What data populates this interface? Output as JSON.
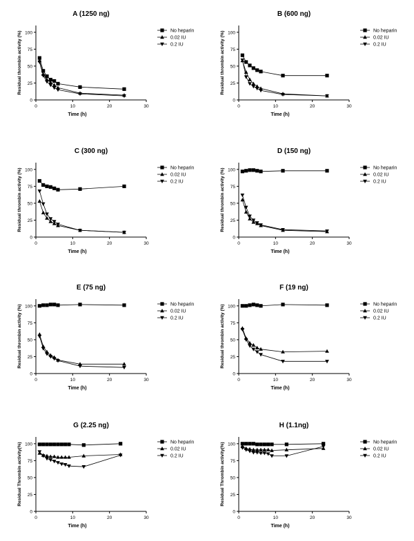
{
  "chart_data": [
    {
      "type": "line",
      "title": "A (1250 ng)",
      "xlabel": "Time (h)",
      "ylabel": "Residual thrombin activity (%)",
      "xlim": [
        0,
        30
      ],
      "ylim": [
        0,
        110
      ],
      "xticks": [
        0,
        10,
        20,
        30
      ],
      "yticks": [
        0,
        25,
        50,
        75,
        100
      ],
      "grid": false,
      "legend_position": "right",
      "series": [
        {
          "name": "No heparin",
          "marker": "square",
          "x": [
            1,
            2,
            3,
            4,
            5,
            6,
            12,
            24
          ],
          "y": [
            62,
            43,
            35,
            30,
            28,
            24,
            19,
            16
          ]
        },
        {
          "name": "0.02 IU",
          "marker": "triangle-up",
          "x": [
            1,
            2,
            3,
            4,
            5,
            6,
            12,
            24
          ],
          "y": [
            58,
            38,
            30,
            26,
            22,
            18,
            10,
            7
          ]
        },
        {
          "name": "0.2 IU",
          "marker": "triangle-down",
          "x": [
            1,
            2,
            3,
            4,
            5,
            6,
            12,
            24
          ],
          "y": [
            56,
            36,
            27,
            22,
            18,
            15,
            9,
            6
          ]
        }
      ]
    },
    {
      "type": "line",
      "title": "B (600 ng)",
      "xlabel": "Time (h)",
      "ylabel": "Residual thrombin activity (%)",
      "xlim": [
        0,
        30
      ],
      "ylim": [
        0,
        110
      ],
      "xticks": [
        0,
        10,
        20,
        30
      ],
      "yticks": [
        0,
        25,
        50,
        75,
        100
      ],
      "grid": false,
      "legend_position": "right",
      "series": [
        {
          "name": "No heparin",
          "marker": "square",
          "x": [
            1,
            2,
            3,
            4,
            5,
            6,
            12,
            24
          ],
          "y": [
            66,
            56,
            51,
            47,
            44,
            42,
            36,
            36
          ]
        },
        {
          "name": "0.02 IU",
          "marker": "triangle-up",
          "x": [
            1,
            2,
            3,
            4,
            5,
            6,
            12,
            24
          ],
          "y": [
            58,
            41,
            30,
            24,
            20,
            17,
            9,
            6
          ]
        },
        {
          "name": "0.2 IU",
          "marker": "triangle-down",
          "x": [
            1,
            2,
            3,
            4,
            5,
            6,
            12,
            24
          ],
          "y": [
            59,
            34,
            24,
            20,
            17,
            14,
            8,
            6
          ]
        }
      ]
    },
    {
      "type": "line",
      "title": "C (300 ng)",
      "xlabel": "Time (h)",
      "ylabel": "Residual thrombin activity (%)",
      "xlim": [
        0,
        30
      ],
      "ylim": [
        0,
        110
      ],
      "xticks": [
        0,
        10,
        20,
        30
      ],
      "yticks": [
        0,
        25,
        50,
        75,
        100
      ],
      "grid": false,
      "legend_position": "right",
      "series": [
        {
          "name": "No heparin",
          "marker": "square",
          "x": [
            1,
            2,
            3,
            4,
            5,
            6,
            12,
            24
          ],
          "y": [
            83,
            77,
            75,
            74,
            72,
            70,
            71,
            75
          ]
        },
        {
          "name": "0.02 IU",
          "marker": "triangle-up",
          "x": [
            1,
            2,
            3,
            4,
            5,
            6,
            12,
            24
          ],
          "y": [
            53,
            36,
            28,
            23,
            20,
            17,
            10,
            7
          ]
        },
        {
          "name": "0.2 IU",
          "marker": "triangle-down",
          "x": [
            1,
            2,
            3,
            4,
            5,
            6,
            12,
            24
          ],
          "y": [
            68,
            49,
            34,
            27,
            23,
            19,
            10,
            7
          ]
        }
      ]
    },
    {
      "type": "line",
      "title": "D (150 ng)",
      "xlabel": "Time (h)",
      "ylabel": "Residual thrombin activity (%)",
      "xlim": [
        0,
        30
      ],
      "ylim": [
        0,
        110
      ],
      "xticks": [
        0,
        10,
        20,
        30
      ],
      "yticks": [
        0,
        25,
        50,
        75,
        100
      ],
      "grid": false,
      "legend_position": "right",
      "series": [
        {
          "name": "No heparin",
          "marker": "square",
          "x": [
            1,
            2,
            3,
            4,
            5,
            6,
            12,
            24
          ],
          "y": [
            97,
            98,
            99,
            99,
            98,
            97,
            98,
            98
          ]
        },
        {
          "name": "0.02 IU",
          "marker": "triangle-up",
          "x": [
            1,
            2,
            3,
            4,
            5,
            6,
            12,
            24
          ],
          "y": [
            55,
            37,
            27,
            22,
            20,
            17,
            10,
            8
          ]
        },
        {
          "name": "0.2 IU",
          "marker": "triangle-down",
          "x": [
            1,
            2,
            3,
            4,
            5,
            6,
            12,
            24
          ],
          "y": [
            62,
            44,
            31,
            25,
            21,
            18,
            11,
            9
          ]
        }
      ]
    },
    {
      "type": "line",
      "title": "E (75 ng)",
      "xlabel": "Time (h)",
      "ylabel": "Residual thrombin activity (%)",
      "xlim": [
        0,
        30
      ],
      "ylim": [
        0,
        110
      ],
      "xticks": [
        0,
        10,
        20,
        30
      ],
      "yticks": [
        0,
        25,
        50,
        75,
        100
      ],
      "grid": false,
      "legend_position": "right",
      "series": [
        {
          "name": "No heparin",
          "marker": "square",
          "x": [
            1,
            2,
            3,
            4,
            5,
            6,
            12,
            24
          ],
          "y": [
            100,
            101,
            101,
            102,
            102,
            101,
            102,
            101
          ]
        },
        {
          "name": "0.02 IU",
          "marker": "triangle-up",
          "x": [
            1,
            2,
            3,
            4,
            5,
            6,
            12,
            24
          ],
          "y": [
            58,
            40,
            32,
            27,
            24,
            20,
            14,
            14
          ]
        },
        {
          "name": "0.2 IU",
          "marker": "triangle-down",
          "x": [
            1,
            2,
            3,
            4,
            5,
            6,
            12,
            24
          ],
          "y": [
            55,
            37,
            29,
            25,
            22,
            19,
            11,
            9
          ]
        }
      ]
    },
    {
      "type": "line",
      "title": "F (19 ng)",
      "xlabel": "Time (h)",
      "ylabel": "Residual thrombin activity (%)",
      "xlim": [
        0,
        30
      ],
      "ylim": [
        0,
        110
      ],
      "xticks": [
        0,
        10,
        20,
        30
      ],
      "yticks": [
        0,
        25,
        50,
        75,
        100
      ],
      "grid": false,
      "legend_position": "right",
      "series": [
        {
          "name": "No heparin",
          "marker": "square",
          "x": [
            1,
            2,
            3,
            4,
            5,
            6,
            12,
            24
          ],
          "y": [
            100,
            100,
            101,
            102,
            101,
            100,
            102,
            101
          ]
        },
        {
          "name": "0.02 IU",
          "marker": "triangle-up",
          "x": [
            1,
            2,
            3,
            4,
            5,
            6,
            12,
            24
          ],
          "y": [
            67,
            52,
            45,
            42,
            38,
            36,
            32,
            33
          ]
        },
        {
          "name": "0.2 IU",
          "marker": "triangle-down",
          "x": [
            1,
            2,
            3,
            4,
            5,
            6,
            12,
            24
          ],
          "y": [
            65,
            50,
            41,
            36,
            32,
            28,
            18,
            18
          ]
        }
      ]
    },
    {
      "type": "line",
      "title": "G (2.25 ng)",
      "xlabel": "Time (h)",
      "ylabel": "Residual Thrombin activity(%)",
      "xlim": [
        0,
        30
      ],
      "ylim": [
        0,
        110
      ],
      "xticks": [
        0,
        10,
        20,
        30
      ],
      "yticks": [
        0,
        25,
        50,
        75,
        100
      ],
      "grid": false,
      "legend_position": "right",
      "series": [
        {
          "name": "No heparin",
          "marker": "square",
          "x": [
            1,
            2,
            3,
            4,
            5,
            6,
            7,
            8,
            9,
            13,
            23
          ],
          "y": [
            99,
            99,
            99,
            99,
            99,
            99,
            99,
            99,
            99,
            98,
            100
          ]
        },
        {
          "name": "0.02 IU",
          "marker": "triangle-up",
          "x": [
            1,
            2,
            3,
            4,
            5,
            6,
            7,
            8,
            9,
            13,
            23
          ],
          "y": [
            86,
            83,
            82,
            81,
            81,
            80,
            80,
            80,
            80,
            82,
            84
          ]
        },
        {
          "name": "0.2 IU",
          "marker": "triangle-down",
          "x": [
            1,
            2,
            3,
            4,
            5,
            6,
            7,
            8,
            9,
            13,
            23
          ],
          "y": [
            88,
            82,
            78,
            76,
            74,
            72,
            70,
            69,
            67,
            66,
            83
          ]
        }
      ]
    },
    {
      "type": "line",
      "title": "H (1.1ng)",
      "xlabel": "Time (h)",
      "ylabel": "Residual Thrombin activity(%)",
      "xlim": [
        0,
        30
      ],
      "ylim": [
        0,
        110
      ],
      "xticks": [
        0,
        10,
        20,
        30
      ],
      "yticks": [
        0,
        25,
        50,
        75,
        100
      ],
      "grid": false,
      "legend_position": "right",
      "series": [
        {
          "name": "No heparin",
          "marker": "square",
          "x": [
            1,
            2,
            3,
            4,
            5,
            6,
            7,
            8,
            9,
            13,
            23
          ],
          "y": [
            100,
            100,
            100,
            100,
            99,
            99,
            99,
            99,
            99,
            99,
            100
          ]
        },
        {
          "name": "0.02 IU",
          "marker": "triangle-up",
          "x": [
            1,
            2,
            3,
            4,
            5,
            6,
            7,
            8,
            9,
            13,
            23
          ],
          "y": [
            96,
            93,
            92,
            91,
            91,
            91,
            91,
            91,
            90,
            91,
            93
          ]
        },
        {
          "name": "0.2 IU",
          "marker": "triangle-down",
          "x": [
            1,
            2,
            3,
            4,
            5,
            6,
            7,
            8,
            9,
            13,
            23
          ],
          "y": [
            94,
            91,
            89,
            87,
            87,
            86,
            86,
            85,
            82,
            82,
            96
          ]
        }
      ]
    }
  ]
}
